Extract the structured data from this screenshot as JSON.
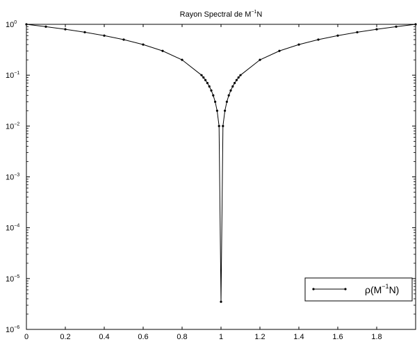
{
  "chart_data": {
    "type": "line",
    "title": {
      "base": "Rayon Spectral de M",
      "sup": "−1",
      "tail": "N"
    },
    "xlabel": "",
    "ylabel": "",
    "xlim": [
      0,
      2
    ],
    "ylim": [
      1e-06,
      1
    ],
    "yscale": "log",
    "grid": false,
    "x_ticks": [
      {
        "value": 0,
        "label": "0"
      },
      {
        "value": 0.2,
        "label": "0.2"
      },
      {
        "value": 0.4,
        "label": "0.4"
      },
      {
        "value": 0.6,
        "label": "0.6"
      },
      {
        "value": 0.8,
        "label": "0.8"
      },
      {
        "value": 1,
        "label": "1"
      },
      {
        "value": 1.2,
        "label": "1.2"
      },
      {
        "value": 1.4,
        "label": "1.4"
      },
      {
        "value": 1.6,
        "label": "1.6"
      },
      {
        "value": 1.8,
        "label": "1.8"
      }
    ],
    "y_ticks": [
      {
        "value": 1,
        "base": "10",
        "exp": "0"
      },
      {
        "value": 0.1,
        "base": "10",
        "exp": "−1"
      },
      {
        "value": 0.01,
        "base": "10",
        "exp": "−2"
      },
      {
        "value": 0.001,
        "base": "10",
        "exp": "−3"
      },
      {
        "value": 0.0001,
        "base": "10",
        "exp": "−4"
      },
      {
        "value": 1e-05,
        "base": "10",
        "exp": "−5"
      },
      {
        "value": 1e-06,
        "base": "10",
        "exp": "−6"
      }
    ],
    "legend": {
      "placement": "bottom-right",
      "label": {
        "base": "ρ(M",
        "sup": "−1",
        "tail": "N)"
      }
    },
    "series": [
      {
        "name": "ρ(M⁻¹N)",
        "color": "#000000",
        "marker": "dot",
        "x": [
          0,
          0.1,
          0.2,
          0.3,
          0.4,
          0.5,
          0.6,
          0.7,
          0.8,
          0.9,
          0.91,
          0.92,
          0.93,
          0.94,
          0.95,
          0.96,
          0.97,
          0.98,
          0.99,
          1.0,
          1.01,
          1.02,
          1.03,
          1.04,
          1.05,
          1.06,
          1.07,
          1.08,
          1.09,
          1.1,
          1.2,
          1.3,
          1.4,
          1.5,
          1.6,
          1.7,
          1.8,
          1.9,
          2.0
        ],
        "y": [
          1.0,
          0.9,
          0.8,
          0.7,
          0.6,
          0.5,
          0.4,
          0.3,
          0.2,
          0.1,
          0.09,
          0.08,
          0.07,
          0.06,
          0.05,
          0.04,
          0.03,
          0.02,
          0.01,
          3.5e-06,
          0.01,
          0.02,
          0.03,
          0.04,
          0.05,
          0.06,
          0.07,
          0.08,
          0.09,
          0.1,
          0.2,
          0.3,
          0.4,
          0.5,
          0.6,
          0.7,
          0.8,
          0.9,
          1.0
        ]
      }
    ]
  }
}
